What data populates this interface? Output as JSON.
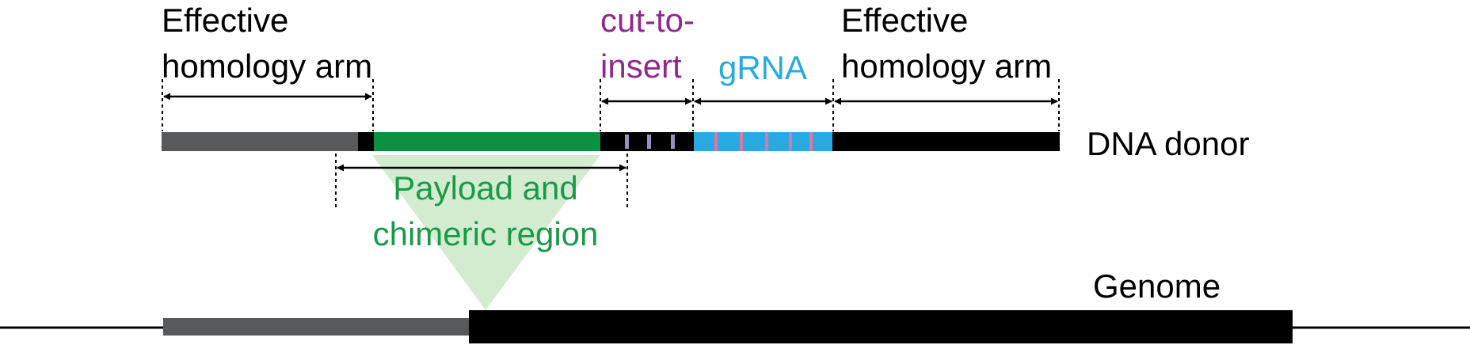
{
  "labels": {
    "left_arm_line1": "Effective",
    "left_arm_line2": "homology arm",
    "right_arm_line1": "Effective",
    "right_arm_line2": "homology arm",
    "cut_line1": "cut-to-",
    "cut_line2": "insert",
    "grna": "gRNA",
    "payload_line1": "Payload and",
    "payload_line2": "chimeric region",
    "donor": "DNA donor",
    "genome": "Genome"
  },
  "colors": {
    "homology_gray": "#58595b",
    "black": "#000000",
    "payload_green": "#0a9142",
    "insert_wedge": "#d3ecd0",
    "grna_blue": "#27aae1",
    "grna_marks": "#e6739f",
    "cut_marks": "#9a8fbd",
    "cut_text": "#92278f",
    "payload_text": "#1a9a48"
  }
}
